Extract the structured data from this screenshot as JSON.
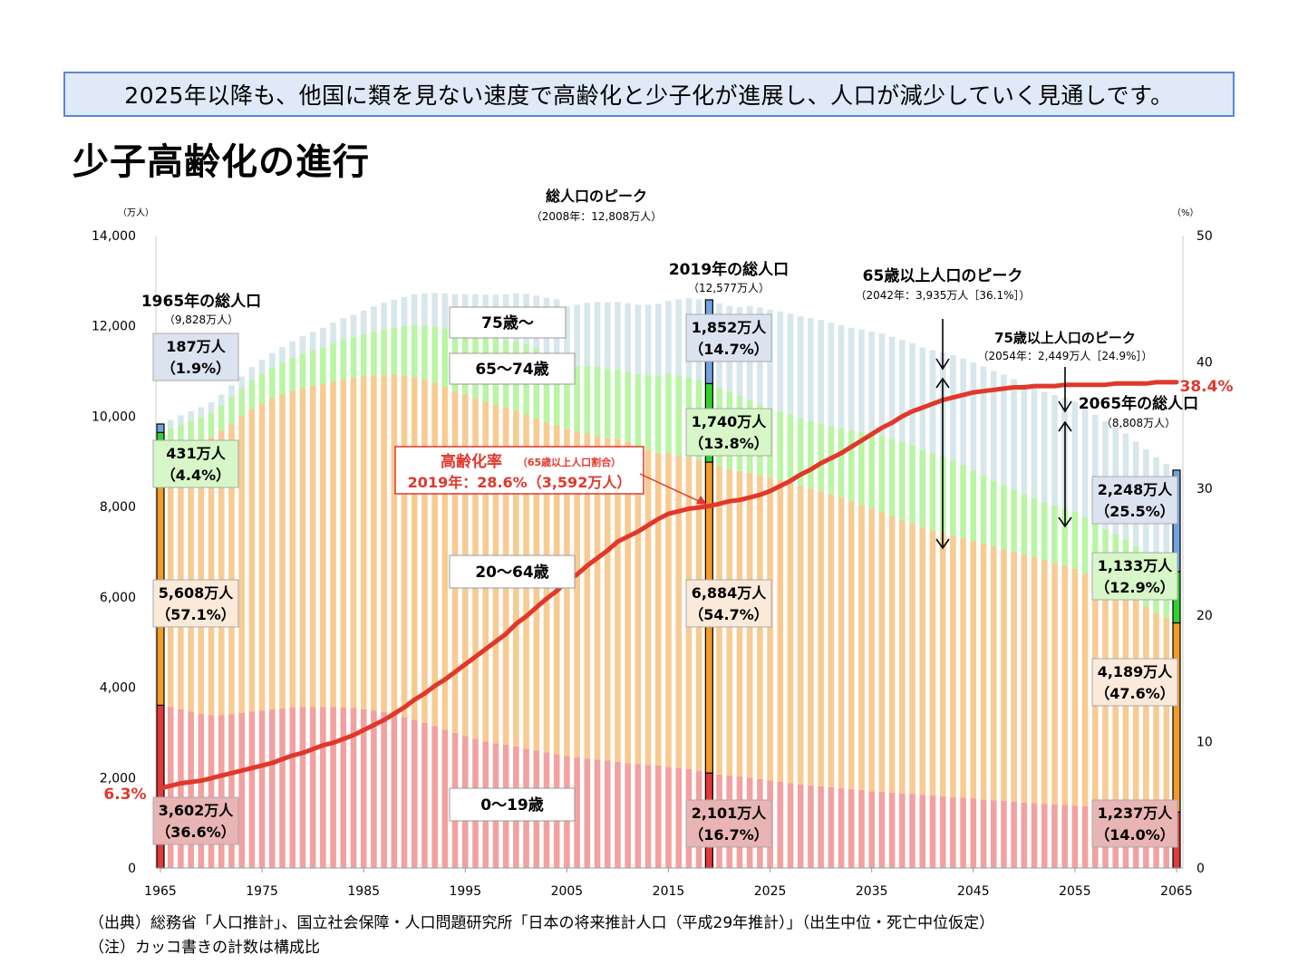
{
  "banner": "2025年以降も、他国に類を見ない速度で高齢化と少子化が進展し、人口が減少していく見通しです。",
  "page_title": "少子高齢化の進行",
  "footnotes": {
    "source": "（出典）総務省「人口推計」、国立社会保障・人口問題研究所「日本の将来推計人口（平成29年推計）」（出生中位・死亡中位仮定）",
    "note": "（注）カッコ書きの計数は構成比"
  },
  "chart_data": {
    "type": "bar",
    "stacked": true,
    "colors": {
      "age_0_19": "#f2a1a1",
      "age_20_64": "#f7cb92",
      "age_65_74": "#b9f5a4",
      "age_75_plus": "#d7e7ec",
      "aging_rate_line": "#e0382b"
    },
    "y_left_unit": "（万人）",
    "y_right_unit": "（%）",
    "ylim": [
      0,
      14000
    ],
    "y2lim": [
      0,
      50
    ],
    "yticks": [
      "0",
      "2,000",
      "4,000",
      "6,000",
      "8,000",
      "10,000",
      "12,000",
      "14,000"
    ],
    "y2ticks": [
      "0",
      "10",
      "20",
      "30",
      "40",
      "50"
    ],
    "xticks": [
      "1965",
      "1975",
      "1985",
      "1995",
      "2005",
      "2015",
      "2025",
      "2035",
      "2045",
      "2055",
      "2065"
    ],
    "series_labels": {
      "age_75_plus": "75歳～",
      "age_65_74": "65～74歳",
      "age_20_64": "20～64歳",
      "age_0_19": "0～19歳"
    },
    "key_years": [
      {
        "year": 1965,
        "total_title": "1965年の総人口",
        "total_value": "（9,828万人）",
        "age_75_plus": {
          "value": 187,
          "label": "187万人",
          "pct": "（1.9%）"
        },
        "age_65_74": {
          "value": 431,
          "label": "431万人",
          "pct": "（4.4%）"
        },
        "age_20_64": {
          "value": 5608,
          "label": "5,608万人",
          "pct": "（57.1%）"
        },
        "age_0_19": {
          "value": 3602,
          "label": "3,602万人",
          "pct": "（36.6%）"
        }
      },
      {
        "year": 2019,
        "total_title": "2019年の総人口",
        "total_value": "（12,577万人）",
        "age_75_plus": {
          "value": 1852,
          "label": "1,852万人",
          "pct": "（14.7%）"
        },
        "age_65_74": {
          "value": 1740,
          "label": "1,740万人",
          "pct": "（13.8%）"
        },
        "age_20_64": {
          "value": 6884,
          "label": "6,884万人",
          "pct": "（54.7%）"
        },
        "age_0_19": {
          "value": 2101,
          "label": "2,101万人",
          "pct": "（16.7%）"
        }
      },
      {
        "year": 2065,
        "total_title": "2065年の総人口",
        "total_value": "（8,808万人）",
        "age_75_plus": {
          "value": 2248,
          "label": "2,248万人",
          "pct": "（25.5%）"
        },
        "age_65_74": {
          "value": 1133,
          "label": "1,133万人",
          "pct": "（12.9%）"
        },
        "age_20_64": {
          "value": 4189,
          "label": "4,189万人",
          "pct": "（47.6%）"
        },
        "age_0_19": {
          "value": 1237,
          "label": "1,237万人",
          "pct": "（14.0%）"
        }
      }
    ],
    "annotations": {
      "total_peak_title": "総人口のピーク",
      "total_peak_detail": "（2008年：12,808万人）",
      "peak65_title": "65歳以上人口のピーク",
      "peak65_detail": "（2042年：3,935万人［36.1%］）",
      "peak75_title": "75歳以上人口のピーク",
      "peak75_detail": "（2054年：2,449万人［24.9%］）",
      "aging_title": "高齢化率",
      "aging_sub": "（65歳以上人口割合）",
      "aging_2019": "2019年：28.6%（3,592万人）",
      "rate_start": "6.3%",
      "rate_end": "38.4%"
    },
    "years": [
      1965,
      1966,
      1967,
      1968,
      1969,
      1970,
      1971,
      1972,
      1973,
      1974,
      1975,
      1976,
      1977,
      1978,
      1979,
      1980,
      1981,
      1982,
      1983,
      1984,
      1985,
      1986,
      1987,
      1988,
      1989,
      1990,
      1991,
      1992,
      1993,
      1994,
      1995,
      1996,
      1997,
      1998,
      1999,
      2000,
      2001,
      2002,
      2003,
      2004,
      2005,
      2006,
      2007,
      2008,
      2009,
      2010,
      2011,
      2012,
      2013,
      2014,
      2015,
      2016,
      2017,
      2018,
      2019,
      2020,
      2021,
      2022,
      2023,
      2024,
      2025,
      2026,
      2027,
      2028,
      2029,
      2030,
      2031,
      2032,
      2033,
      2034,
      2035,
      2036,
      2037,
      2038,
      2039,
      2040,
      2041,
      2042,
      2043,
      2044,
      2045,
      2046,
      2047,
      2048,
      2049,
      2050,
      2051,
      2052,
      2053,
      2054,
      2055,
      2056,
      2057,
      2058,
      2059,
      2060,
      2061,
      2062,
      2063,
      2064,
      2065
    ],
    "age_0_19": [
      3602,
      3560,
      3510,
      3460,
      3410,
      3380,
      3380,
      3400,
      3430,
      3460,
      3480,
      3510,
      3530,
      3550,
      3560,
      3560,
      3560,
      3560,
      3550,
      3540,
      3510,
      3480,
      3450,
      3400,
      3340,
      3280,
      3210,
      3140,
      3060,
      2990,
      2920,
      2860,
      2800,
      2760,
      2730,
      2690,
      2640,
      2600,
      2560,
      2520,
      2480,
      2450,
      2420,
      2400,
      2380,
      2350,
      2320,
      2300,
      2280,
      2270,
      2240,
      2220,
      2190,
      2150,
      2101,
      2070,
      2050,
      2030,
      2000,
      1970,
      1940,
      1910,
      1880,
      1850,
      1830,
      1810,
      1790,
      1770,
      1750,
      1730,
      1700,
      1690,
      1670,
      1650,
      1640,
      1620,
      1610,
      1590,
      1570,
      1560,
      1540,
      1520,
      1500,
      1490,
      1470,
      1450,
      1440,
      1420,
      1410,
      1400,
      1380,
      1370,
      1350,
      1340,
      1330,
      1310,
      1300,
      1290,
      1270,
      1250,
      1237
    ],
    "age_20_64": [
      5608,
      5720,
      5840,
      5950,
      6060,
      6160,
      6300,
      6430,
      6570,
      6700,
      6800,
      6880,
      6950,
      7010,
      7060,
      7110,
      7150,
      7200,
      7260,
      7310,
      7370,
      7420,
      7470,
      7520,
      7560,
      7590,
      7600,
      7600,
      7590,
      7570,
      7560,
      7540,
      7520,
      7490,
      7460,
      7430,
      7400,
      7350,
      7310,
      7280,
      7240,
      7220,
      7200,
      7160,
      7130,
      7150,
      7110,
      7030,
      6970,
      6920,
      6940,
      6920,
      6900,
      6890,
      6884,
      6820,
      6790,
      6760,
      6750,
      6720,
      6710,
      6680,
      6650,
      6610,
      6570,
      6530,
      6480,
      6430,
      6370,
      6310,
      6260,
      6190,
      6120,
      6050,
      5980,
      5920,
      5860,
      5820,
      5780,
      5740,
      5700,
      5660,
      5610,
      5570,
      5530,
      5480,
      5440,
      5390,
      5340,
      5290,
      5240,
      5140,
      5040,
      4950,
      4860,
      4770,
      4630,
      4500,
      4380,
      4280,
      4189
    ],
    "age_65_74": [
      431,
      450,
      470,
      490,
      510,
      540,
      560,
      590,
      610,
      640,
      660,
      680,
      700,
      730,
      760,
      790,
      820,
      860,
      890,
      910,
      940,
      980,
      1010,
      1050,
      1100,
      1160,
      1210,
      1250,
      1300,
      1340,
      1380,
      1420,
      1450,
      1480,
      1500,
      1540,
      1560,
      1560,
      1540,
      1530,
      1410,
      1450,
      1490,
      1540,
      1540,
      1530,
      1540,
      1600,
      1660,
      1710,
      1760,
      1770,
      1770,
      1760,
      1740,
      1740,
      1710,
      1650,
      1610,
      1560,
      1530,
      1520,
      1510,
      1500,
      1500,
      1500,
      1510,
      1540,
      1570,
      1610,
      1650,
      1690,
      1710,
      1740,
      1750,
      1720,
      1710,
      1700,
      1670,
      1620,
      1560,
      1510,
      1460,
      1420,
      1380,
      1340,
      1310,
      1290,
      1280,
      1270,
      1260,
      1250,
      1230,
      1210,
      1200,
      1190,
      1180,
      1170,
      1150,
      1140,
      1133
    ],
    "age_75_plus": [
      187,
      190,
      200,
      210,
      220,
      230,
      240,
      260,
      270,
      290,
      310,
      330,
      350,
      370,
      390,
      410,
      430,
      450,
      470,
      490,
      520,
      550,
      580,
      610,
      640,
      670,
      700,
      740,
      770,
      800,
      840,
      880,
      920,
      960,
      1010,
      1060,
      1110,
      1160,
      1210,
      1260,
      1300,
      1350,
      1400,
      1430,
      1470,
      1500,
      1530,
      1540,
      1560,
      1590,
      1610,
      1680,
      1750,
      1790,
      1852,
      1870,
      1890,
      1980,
      2080,
      2160,
      2180,
      2210,
      2230,
      2250,
      2270,
      2290,
      2290,
      2280,
      2270,
      2270,
      2260,
      2260,
      2260,
      2250,
      2250,
      2260,
      2280,
      2300,
      2330,
      2360,
      2390,
      2410,
      2430,
      2440,
      2440,
      2440,
      2440,
      2440,
      2440,
      2449,
      2440,
      2430,
      2410,
      2390,
      2370,
      2350,
      2330,
      2310,
      2290,
      2270,
      2248
    ],
    "aging_rate": [
      6.3,
      6.5,
      6.7,
      6.8,
      6.9,
      7.1,
      7.3,
      7.5,
      7.7,
      7.9,
      8.1,
      8.3,
      8.6,
      8.9,
      9.1,
      9.4,
      9.7,
      9.9,
      10.2,
      10.5,
      10.9,
      11.3,
      11.7,
      12.2,
      12.7,
      13.3,
      13.8,
      14.4,
      14.9,
      15.5,
      16.1,
      16.7,
      17.3,
      17.9,
      18.5,
      19.3,
      19.9,
      20.6,
      21.3,
      21.9,
      22.7,
      23.2,
      23.9,
      24.5,
      25.1,
      25.8,
      26.2,
      26.6,
      27.1,
      27.6,
      28.0,
      28.2,
      28.4,
      28.5,
      28.6,
      28.8,
      29.0,
      29.1,
      29.3,
      29.5,
      29.8,
      30.2,
      30.6,
      31.1,
      31.5,
      32.0,
      32.4,
      32.8,
      33.3,
      33.8,
      34.3,
      34.8,
      35.2,
      35.7,
      36.1,
      36.4,
      36.7,
      37.0,
      37.2,
      37.4,
      37.6,
      37.7,
      37.8,
      37.9,
      38.0,
      38.0,
      38.1,
      38.1,
      38.1,
      38.2,
      38.2,
      38.2,
      38.2,
      38.2,
      38.3,
      38.3,
      38.3,
      38.3,
      38.4,
      38.4,
      38.4
    ]
  }
}
